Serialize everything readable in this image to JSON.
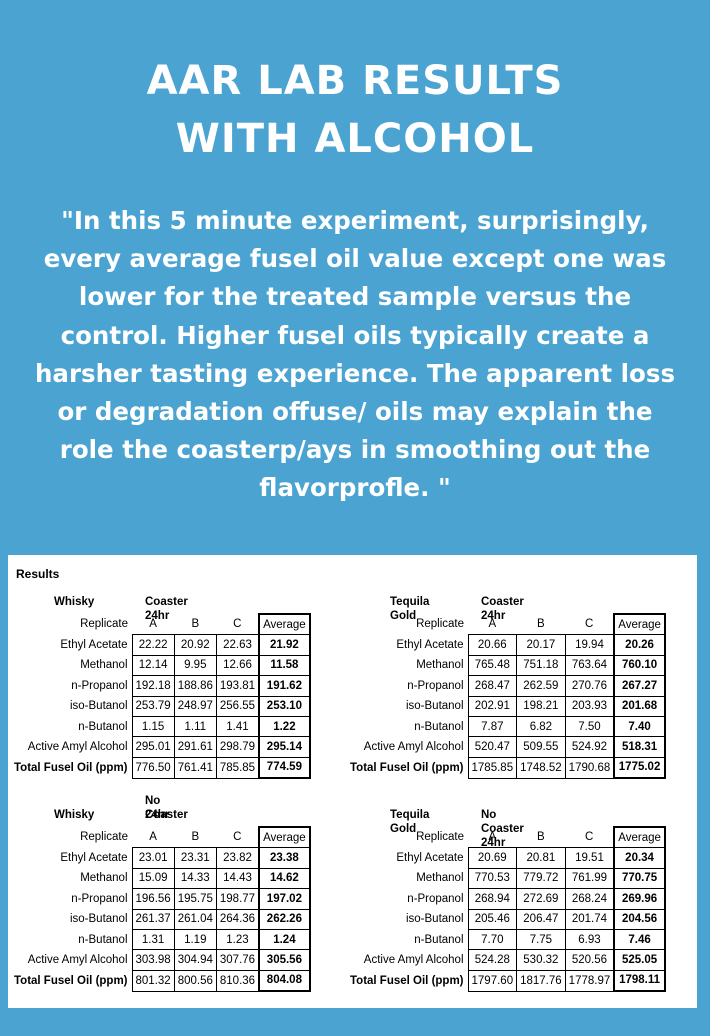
{
  "title_lines": [
    "AAR LAB RESULTS",
    "WITH ALCOHOL"
  ],
  "quote_lines": [
    "\"In this 5 minute experiment, surprisingly,",
    "every average fusel oil value except one was",
    "lower for the treated sample versus the",
    "control. Higher fusel oils typically create a",
    "harsher tasting experience. The apparent loss",
    "or degradation offuse/ oils may explain the",
    "role the coasterp/ays in smoothing out the",
    "flavorprofle. \""
  ],
  "results_label": "Results",
  "header_row": {
    "label": "Replicate",
    "a": "A",
    "b": "B",
    "c": "C",
    "avg": "Average"
  },
  "blocks": [
    {
      "spirit": "Whisky",
      "condition_lines": [
        "Coaster 24hr"
      ],
      "rows": [
        {
          "label": "Ethyl Acetate",
          "a": "22.22",
          "b": "20.92",
          "c": "22.63",
          "avg": "21.92"
        },
        {
          "label": "Methanol",
          "a": "12.14",
          "b": "9.95",
          "c": "12.66",
          "avg": "11.58"
        },
        {
          "label": "n-Propanol",
          "a": "192.18",
          "b": "188.86",
          "c": "193.81",
          "avg": "191.62"
        },
        {
          "label": "iso-Butanol",
          "a": "253.79",
          "b": "248.97",
          "c": "256.55",
          "avg": "253.10"
        },
        {
          "label": "n-Butanol",
          "a": "1.15",
          "b": "1.11",
          "c": "1.41",
          "avg": "1.22"
        },
        {
          "label": "Active Amyl Alcohol",
          "a": "295.01",
          "b": "291.61",
          "c": "298.79",
          "avg": "295.14"
        },
        {
          "label": "Total Fusel Oil (ppm)",
          "a": "776.50",
          "b": "761.41",
          "c": "785.85",
          "avg": "774.59"
        }
      ]
    },
    {
      "spirit": "Tequila Gold",
      "condition_lines": [
        "Coaster 24hr"
      ],
      "rows": [
        {
          "label": "Ethyl Acetate",
          "a": "20.66",
          "b": "20.17",
          "c": "19.94",
          "avg": "20.26"
        },
        {
          "label": "Methanol",
          "a": "765.48",
          "b": "751.18",
          "c": "763.64",
          "avg": "760.10"
        },
        {
          "label": "n-Propanol",
          "a": "268.47",
          "b": "262.59",
          "c": "270.76",
          "avg": "267.27"
        },
        {
          "label": "iso-Butanol",
          "a": "202.91",
          "b": "198.21",
          "c": "203.93",
          "avg": "201.68"
        },
        {
          "label": "n-Butanol",
          "a": "7.87",
          "b": "6.82",
          "c": "7.50",
          "avg": "7.40"
        },
        {
          "label": "Active Amyl Alcohol",
          "a": "520.47",
          "b": "509.55",
          "c": "524.92",
          "avg": "518.31"
        },
        {
          "label": "Total Fusel Oil (ppm)",
          "a": "1785.85",
          "b": "1748.52",
          "c": "1790.68",
          "avg": "1775.02"
        }
      ]
    },
    {
      "spirit": "Whisky",
      "condition_lines": [
        "No Coaster",
        "24hr"
      ],
      "rows": [
        {
          "label": "Ethyl Acetate",
          "a": "23.01",
          "b": "23.31",
          "c": "23.82",
          "avg": "23.38"
        },
        {
          "label": "Methanol",
          "a": "15.09",
          "b": "14.33",
          "c": "14.43",
          "avg": "14.62"
        },
        {
          "label": "n-Propanol",
          "a": "196.56",
          "b": "195.75",
          "c": "198.77",
          "avg": "197.02"
        },
        {
          "label": "iso-Butanol",
          "a": "261.37",
          "b": "261.04",
          "c": "264.36",
          "avg": "262.26"
        },
        {
          "label": "n-Butanol",
          "a": "1.31",
          "b": "1.19",
          "c": "1.23",
          "avg": "1.24"
        },
        {
          "label": "Active Amyl Alcohol",
          "a": "303.98",
          "b": "304.94",
          "c": "307.76",
          "avg": "305.56"
        },
        {
          "label": "Total Fusel Oil (ppm)",
          "a": "801.32",
          "b": "800.56",
          "c": "810.36",
          "avg": "804.08"
        }
      ]
    },
    {
      "spirit": "Tequila Gold",
      "condition_lines": [
        "No Coaster 24hr"
      ],
      "rows": [
        {
          "label": "Ethyl Acetate",
          "a": "20.69",
          "b": "20.81",
          "c": "19.51",
          "avg": "20.34"
        },
        {
          "label": "Methanol",
          "a": "770.53",
          "b": "779.72",
          "c": "761.99",
          "avg": "770.75"
        },
        {
          "label": "n-Propanol",
          "a": "268.94",
          "b": "272.69",
          "c": "268.24",
          "avg": "269.96"
        },
        {
          "label": "iso-Butanol",
          "a": "205.46",
          "b": "206.47",
          "c": "201.74",
          "avg": "204.56"
        },
        {
          "label": "n-Butanol",
          "a": "7.70",
          "b": "7.75",
          "c": "6.93",
          "avg": "7.46"
        },
        {
          "label": "Active Amyl Alcohol",
          "a": "524.28",
          "b": "530.32",
          "c": "520.56",
          "avg": "525.05"
        },
        {
          "label": "Total Fusel Oil (ppm)",
          "a": "1797.60",
          "b": "1817.76",
          "c": "1778.97",
          "avg": "1798.11"
        }
      ]
    }
  ]
}
